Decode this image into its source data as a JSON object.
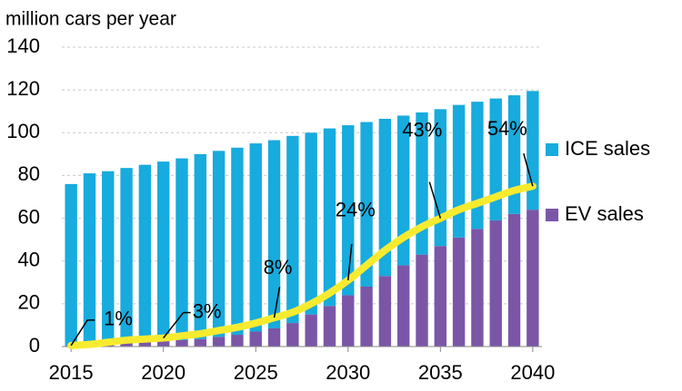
{
  "chart_data": {
    "type": "bar",
    "stacked": true,
    "y_axis_title": "million cars per year",
    "x": [
      2015,
      2016,
      2017,
      2018,
      2019,
      2020,
      2021,
      2022,
      2023,
      2024,
      2025,
      2026,
      2027,
      2028,
      2029,
      2030,
      2031,
      2032,
      2033,
      2034,
      2035,
      2036,
      2037,
      2038,
      2039,
      2040
    ],
    "series": [
      {
        "name": "EV sales",
        "color": "#7b56a7",
        "values": [
          0.5,
          0.8,
          1.2,
          1.6,
          2,
          2.5,
          3,
          3.5,
          4.5,
          5.5,
          7,
          8.5,
          11,
          15,
          19,
          24,
          28,
          33,
          38,
          43,
          47,
          51,
          55,
          59,
          62,
          64
        ]
      },
      {
        "name": "ICE sales",
        "color": "#17abde",
        "values": [
          75.5,
          80.2,
          80.8,
          81.9,
          83,
          84,
          85,
          86.5,
          87,
          87.5,
          88,
          88,
          87.5,
          85,
          83,
          79.5,
          77,
          73.5,
          70,
          66.5,
          64,
          62,
          59.5,
          57,
          55.5,
          55.5
        ]
      }
    ],
    "curve": {
      "color": "#f7eb2f",
      "values": [
        0.5,
        1,
        2,
        3,
        3.5,
        4,
        5,
        6,
        7.5,
        9,
        11,
        13.5,
        16,
        20,
        25,
        31,
        38,
        45,
        51,
        56,
        60,
        64,
        67,
        70,
        73,
        75
      ]
    },
    "annotations": [
      {
        "text": "1%",
        "x": 2015
      },
      {
        "text": "3%",
        "x": 2020
      },
      {
        "text": "8%",
        "x": 2026
      },
      {
        "text": "24%",
        "x": 2030
      },
      {
        "text": "43%",
        "x": 2035
      },
      {
        "text": "54%",
        "x": 2040
      }
    ],
    "xlim": [
      2014.5,
      2040.5
    ],
    "xticks": [
      2015,
      2020,
      2025,
      2030,
      2035,
      2040
    ],
    "ylim": [
      0,
      140
    ],
    "yticks": [
      0,
      20,
      40,
      60,
      80,
      100,
      120,
      140
    ],
    "grid": true,
    "legend": "right"
  }
}
